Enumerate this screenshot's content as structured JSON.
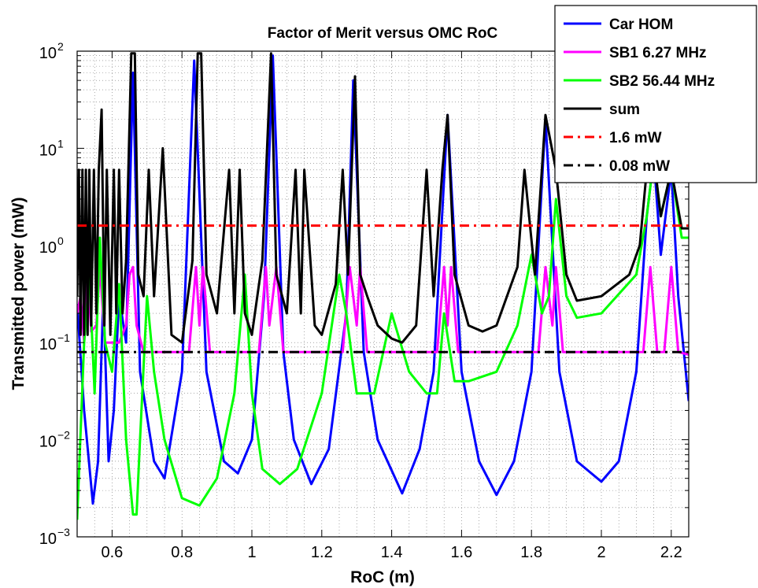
{
  "chart_data": {
    "type": "line",
    "title": "Factor of Merit versus OMC RoC",
    "xlabel": "RoC (m)",
    "ylabel": "Transmitted power (mW)",
    "xlim": [
      0.5,
      2.25
    ],
    "ylim": [
      0.001,
      100
    ],
    "yscale": "log",
    "grid": "on (major and minor, dotted)",
    "legend_position": "top-right",
    "x_ticks": [
      0.6,
      0.8,
      1,
      1.2,
      1.4,
      1.6,
      1.8,
      2,
      2.2
    ],
    "x_tick_labels": [
      "0.6",
      "0.8",
      "1",
      "1.2",
      "1.4",
      "1.6",
      "1.8",
      "2",
      "2.2"
    ],
    "y_ticks": [
      0.001,
      0.01,
      0.1,
      1,
      10,
      100
    ],
    "y_tick_labels": [
      {
        "base": "10",
        "exp": "−3"
      },
      {
        "base": "10",
        "exp": "−2"
      },
      {
        "base": "10",
        "exp": "−1"
      },
      {
        "base": "10",
        "exp": "0"
      },
      {
        "base": "10",
        "exp": "1"
      },
      {
        "base": "10",
        "exp": "2"
      }
    ],
    "series": [
      {
        "name": "Car HOM",
        "color": "#0000ff",
        "style": "solid",
        "points": [
          [
            0.5,
            0.25
          ],
          [
            0.52,
            0.02
          ],
          [
            0.545,
            0.0022
          ],
          [
            0.56,
            0.006
          ],
          [
            0.575,
            0.3
          ],
          [
            0.59,
            0.006
          ],
          [
            0.605,
            0.02
          ],
          [
            0.62,
            0.3
          ],
          [
            0.64,
            0.1
          ],
          [
            0.66,
            60
          ],
          [
            0.68,
            0.05
          ],
          [
            0.72,
            0.006
          ],
          [
            0.75,
            0.004
          ],
          [
            0.8,
            0.05
          ],
          [
            0.835,
            80
          ],
          [
            0.87,
            0.05
          ],
          [
            0.92,
            0.006
          ],
          [
            0.96,
            0.0045
          ],
          [
            1.0,
            0.01
          ],
          [
            1.035,
            0.3
          ],
          [
            1.06,
            90
          ],
          [
            1.09,
            0.08
          ],
          [
            1.12,
            0.01
          ],
          [
            1.17,
            0.0035
          ],
          [
            1.22,
            0.008
          ],
          [
            1.27,
            0.2
          ],
          [
            1.29,
            50
          ],
          [
            1.32,
            0.08
          ],
          [
            1.36,
            0.01
          ],
          [
            1.43,
            0.0028
          ],
          [
            1.48,
            0.008
          ],
          [
            1.52,
            0.05
          ],
          [
            1.56,
            22
          ],
          [
            1.6,
            0.05
          ],
          [
            1.65,
            0.006
          ],
          [
            1.7,
            0.0027
          ],
          [
            1.75,
            0.006
          ],
          [
            1.8,
            0.05
          ],
          [
            1.84,
            20
          ],
          [
            1.88,
            0.05
          ],
          [
            1.93,
            0.006
          ],
          [
            2.0,
            0.0037
          ],
          [
            2.05,
            0.006
          ],
          [
            2.1,
            0.05
          ],
          [
            2.13,
            2
          ],
          [
            2.15,
            8
          ],
          [
            2.17,
            0.8
          ],
          [
            2.2,
            6
          ],
          [
            2.22,
            0.3
          ],
          [
            2.25,
            0.025
          ]
        ]
      },
      {
        "name": "SB1 6.27 MHz",
        "color": "#ff00ff",
        "style": "solid",
        "points": [
          [
            0.5,
            0.2
          ],
          [
            0.51,
            0.3
          ],
          [
            0.52,
            0.1
          ],
          [
            0.53,
            0.6
          ],
          [
            0.54,
            0.13
          ],
          [
            0.555,
            0.15
          ],
          [
            0.565,
            0.6
          ],
          [
            0.58,
            0.1
          ],
          [
            0.6,
            0.1
          ],
          [
            0.62,
            0.1
          ],
          [
            0.64,
            0.15
          ],
          [
            0.65,
            0.5
          ],
          [
            0.66,
            0.6
          ],
          [
            0.67,
            0.15
          ],
          [
            0.69,
            0.08
          ],
          [
            0.82,
            0.08
          ],
          [
            0.84,
            0.6
          ],
          [
            0.85,
            0.15
          ],
          [
            0.86,
            0.6
          ],
          [
            0.88,
            0.08
          ],
          [
            1.02,
            0.08
          ],
          [
            1.04,
            0.6
          ],
          [
            1.05,
            0.15
          ],
          [
            1.07,
            0.6
          ],
          [
            1.09,
            0.08
          ],
          [
            1.26,
            0.08
          ],
          [
            1.28,
            0.6
          ],
          [
            1.3,
            0.15
          ],
          [
            1.31,
            0.6
          ],
          [
            1.33,
            0.08
          ],
          [
            1.53,
            0.08
          ],
          [
            1.55,
            0.6
          ],
          [
            1.56,
            0.15
          ],
          [
            1.57,
            0.6
          ],
          [
            1.59,
            0.08
          ],
          [
            1.82,
            0.08
          ],
          [
            1.84,
            0.6
          ],
          [
            1.86,
            0.15
          ],
          [
            1.87,
            0.6
          ],
          [
            1.89,
            0.08
          ],
          [
            2.12,
            0.08
          ],
          [
            2.14,
            0.6
          ],
          [
            2.16,
            0.08
          ],
          [
            2.18,
            0.08
          ],
          [
            2.2,
            0.6
          ],
          [
            2.22,
            0.08
          ],
          [
            2.25,
            0.075
          ]
        ]
      },
      {
        "name": "SB2 56.44 MHz",
        "color": "#00ff00",
        "style": "solid",
        "points": [
          [
            0.5,
            0.0015
          ],
          [
            0.52,
            0.1
          ],
          [
            0.535,
            0.5
          ],
          [
            0.55,
            0.03
          ],
          [
            0.565,
            1.2
          ],
          [
            0.58,
            0.1
          ],
          [
            0.6,
            0.05
          ],
          [
            0.62,
            0.4
          ],
          [
            0.64,
            0.01
          ],
          [
            0.66,
            0.0017
          ],
          [
            0.67,
            0.0017
          ],
          [
            0.68,
            0.01
          ],
          [
            0.7,
            0.3
          ],
          [
            0.72,
            0.05
          ],
          [
            0.75,
            0.01
          ],
          [
            0.8,
            0.0025
          ],
          [
            0.85,
            0.0021
          ],
          [
            0.9,
            0.004
          ],
          [
            0.95,
            0.03
          ],
          [
            0.98,
            0.5
          ],
          [
            1.0,
            0.03
          ],
          [
            1.03,
            0.005
          ],
          [
            1.08,
            0.0035
          ],
          [
            1.13,
            0.005
          ],
          [
            1.2,
            0.03
          ],
          [
            1.25,
            0.5
          ],
          [
            1.27,
            0.2
          ],
          [
            1.3,
            0.03
          ],
          [
            1.35,
            0.03
          ],
          [
            1.4,
            0.2
          ],
          [
            1.45,
            0.05
          ],
          [
            1.5,
            0.03
          ],
          [
            1.53,
            0.03
          ],
          [
            1.55,
            0.2
          ],
          [
            1.58,
            0.04
          ],
          [
            1.62,
            0.04
          ],
          [
            1.7,
            0.05
          ],
          [
            1.76,
            0.15
          ],
          [
            1.8,
            0.8
          ],
          [
            1.83,
            0.2
          ],
          [
            1.85,
            0.3
          ],
          [
            1.87,
            3
          ],
          [
            1.9,
            0.3
          ],
          [
            1.93,
            0.18
          ],
          [
            2.0,
            0.2
          ],
          [
            2.1,
            0.5
          ],
          [
            2.13,
            2
          ],
          [
            2.15,
            8
          ],
          [
            2.17,
            2
          ],
          [
            2.2,
            6
          ],
          [
            2.23,
            1.2
          ],
          [
            2.25,
            1.2
          ]
        ]
      },
      {
        "name": "sum",
        "color": "#000000",
        "style": "solid",
        "points": [
          [
            0.5,
            0.3
          ],
          [
            0.505,
            6
          ],
          [
            0.51,
            0.12
          ],
          [
            0.515,
            6
          ],
          [
            0.52,
            0.12
          ],
          [
            0.525,
            6
          ],
          [
            0.53,
            0.12
          ],
          [
            0.535,
            6
          ],
          [
            0.54,
            0.15
          ],
          [
            0.548,
            6
          ],
          [
            0.555,
            0.2
          ],
          [
            0.562,
            6
          ],
          [
            0.57,
            25
          ],
          [
            0.578,
            0.15
          ],
          [
            0.585,
            6
          ],
          [
            0.595,
            0.12
          ],
          [
            0.605,
            6
          ],
          [
            0.612,
            0.2
          ],
          [
            0.62,
            6
          ],
          [
            0.63,
            0.2
          ],
          [
            0.64,
            0.7
          ],
          [
            0.655,
            95
          ],
          [
            0.665,
            95
          ],
          [
            0.675,
            0.5
          ],
          [
            0.69,
            0.3
          ],
          [
            0.705,
            6
          ],
          [
            0.72,
            0.3
          ],
          [
            0.745,
            10
          ],
          [
            0.77,
            0.12
          ],
          [
            0.8,
            0.1
          ],
          [
            0.83,
            0.7
          ],
          [
            0.845,
            95
          ],
          [
            0.855,
            95
          ],
          [
            0.87,
            0.5
          ],
          [
            0.9,
            0.2
          ],
          [
            0.935,
            6
          ],
          [
            0.95,
            0.2
          ],
          [
            0.965,
            6
          ],
          [
            0.98,
            0.2
          ],
          [
            1.0,
            0.12
          ],
          [
            1.03,
            0.7
          ],
          [
            1.055,
            95
          ],
          [
            1.07,
            0.5
          ],
          [
            1.1,
            0.2
          ],
          [
            1.125,
            6
          ],
          [
            1.14,
            0.2
          ],
          [
            1.15,
            6
          ],
          [
            1.18,
            0.15
          ],
          [
            1.2,
            0.12
          ],
          [
            1.24,
            0.4
          ],
          [
            1.26,
            6
          ],
          [
            1.275,
            0.5
          ],
          [
            1.295,
            55
          ],
          [
            1.31,
            0.5
          ],
          [
            1.33,
            0.3
          ],
          [
            1.36,
            0.15
          ],
          [
            1.4,
            0.11
          ],
          [
            1.43,
            0.1
          ],
          [
            1.47,
            0.15
          ],
          [
            1.5,
            6
          ],
          [
            1.52,
            0.3
          ],
          [
            1.545,
            6
          ],
          [
            1.56,
            22
          ],
          [
            1.58,
            0.5
          ],
          [
            1.62,
            0.15
          ],
          [
            1.66,
            0.13
          ],
          [
            1.7,
            0.15
          ],
          [
            1.76,
            0.6
          ],
          [
            1.78,
            6
          ],
          [
            1.81,
            0.5
          ],
          [
            1.84,
            22
          ],
          [
            1.87,
            6
          ],
          [
            1.9,
            0.5
          ],
          [
            1.93,
            0.27
          ],
          [
            2.0,
            0.3
          ],
          [
            2.08,
            0.5
          ],
          [
            2.11,
            1
          ],
          [
            2.13,
            6
          ],
          [
            2.15,
            8
          ],
          [
            2.17,
            2
          ],
          [
            2.2,
            6
          ],
          [
            2.23,
            1.5
          ],
          [
            2.25,
            1.5
          ]
        ]
      },
      {
        "name": "1.6 mW",
        "color": "#ff0000",
        "style": "dashdot",
        "points": [
          [
            0.5,
            1.6
          ],
          [
            2.25,
            1.6
          ]
        ]
      },
      {
        "name": "0.08 mW",
        "color": "#000000",
        "style": "dashdot",
        "points": [
          [
            0.5,
            0.08
          ],
          [
            2.25,
            0.08
          ]
        ]
      }
    ]
  }
}
